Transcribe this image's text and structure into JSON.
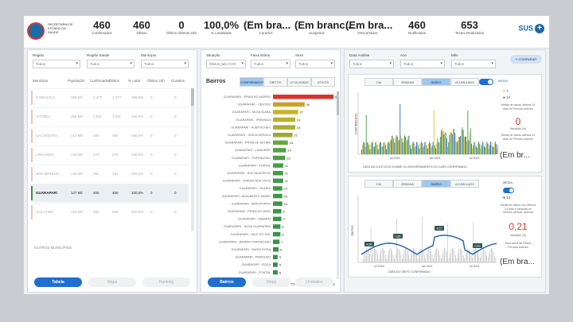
{
  "header": {
    "logo_text": "SECRETARIA DE ESTADO DA SAÚDE",
    "kpis": [
      {
        "value": "460",
        "label": "Confirmados"
      },
      {
        "value": "460",
        "label": "Óbitos"
      },
      {
        "value": "0",
        "label": "Óbitos Últimas 24h"
      },
      {
        "value": "100,0%",
        "label": "% Letalidade"
      },
      {
        "value": "(Em bra...",
        "label": "Curados"
      },
      {
        "value": "(Em branc...",
        "label": "Suspeitos"
      },
      {
        "value": "(Em bra...",
        "label": "Descartados"
      },
      {
        "value": "460",
        "label": "Notificados"
      },
      {
        "value": "653",
        "label": "Testes Realizados"
      }
    ],
    "brand": "SUS"
  },
  "left_panel": {
    "filters": [
      {
        "label": "Região",
        "value": "Todos"
      },
      {
        "label": "Região Saúde",
        "value": "Todos"
      },
      {
        "label": "Município",
        "value": "Todos"
      }
    ],
    "columns": [
      "Município",
      "População",
      "Confirmados",
      "Óbitos",
      "% Letal.",
      "Óbitos 24h",
      "Curados"
    ],
    "rows": [
      {
        "muni": "CARIACICA",
        "pop": "386 Mil",
        "c": "1.477",
        "o": "1.477",
        "l": "100,0%",
        "o24": "0",
        "cur": "0",
        "sel": false
      },
      {
        "muni": "VITÓRIA",
        "pop": "365 Mil",
        "c": "1.511",
        "o": "1.511",
        "l": "100,0%",
        "o24": "0",
        "cur": "0",
        "sel": false
      },
      {
        "muni": "CACHOEIRO",
        "pop": "212 Mil",
        "c": "400",
        "o": "400",
        "l": "100,0%",
        "o24": "0",
        "cur": "0",
        "sel": false
      },
      {
        "muni": "LINHARES",
        "pop": "176 Mil",
        "c": "470",
        "o": "470",
        "l": "100,0%",
        "o24": "0",
        "cur": "0",
        "sel": false
      },
      {
        "muni": "SÃO MATEUS",
        "pop": "132 Mil",
        "c": "281",
        "o": "281",
        "l": "100,0%",
        "o24": "0",
        "cur": "0",
        "sel": false
      },
      {
        "muni": "GUARAPARI",
        "pop": "127 Mil",
        "c": "460",
        "o": "460",
        "l": "100,0%",
        "o24": "0",
        "cur": "0",
        "sel": true
      },
      {
        "muni": "COLATINA",
        "pop": "123 Mil",
        "c": "395",
        "o": "395",
        "l": "100,0%",
        "o24": "0",
        "cur": "0",
        "sel": false
      }
    ],
    "more_label": "OUTROS MUNICÍPIOS",
    "buttons": [
      "Tabela",
      "Mapa",
      "Ranking"
    ]
  },
  "mid_panel": {
    "filters": [
      {
        "label": "Situação",
        "value": "Óbitos pelo COV"
      },
      {
        "label": "Faixa Etária",
        "value": "Todos"
      },
      {
        "label": "Sexo",
        "value": "Todos"
      }
    ],
    "title": "Bairros",
    "tabs": [
      "CONFIRMADOS",
      "ÓBITOS",
      "LETALIDADE",
      "ATIVOS"
    ],
    "bars": [
      {
        "label": "GUARAPARI - PRAIA DO MORRO",
        "value": 65,
        "color": "#d9342b"
      },
      {
        "label": "GUARAPARI - CENTRO",
        "value": 34,
        "color": "#c9a227"
      },
      {
        "label": "GUARAPARI - MUQUIÇABA",
        "value": 27,
        "color": "#c9b227"
      },
      {
        "label": "GUARAPARI - IPIRANGA",
        "value": 24,
        "color": "#b8b030"
      },
      {
        "label": "GUARAPARI - KUBITSCHEK",
        "value": 24,
        "color": "#a9ad33"
      },
      {
        "label": "GUARAPARI - SANTA MÔNICA",
        "value": 21,
        "color": "#9aa936"
      },
      {
        "label": "GUARAPARI - PRAIA DE SETIBA",
        "value": 16,
        "color": "#64a83e"
      },
      {
        "label": "GUARAPARI - LAMEIRÃO",
        "value": 14,
        "color": "#52a440"
      },
      {
        "label": "GUARAPARI - ITAPEBUSSU",
        "value": 13,
        "color": "#4aa042"
      },
      {
        "label": "GUARAPARI - PORTAL",
        "value": 11,
        "color": "#469e43"
      },
      {
        "label": "GUARAPARI - SOL NASCENTE",
        "value": 11,
        "color": "#429c44"
      },
      {
        "label": "GUARAPARI - JARDIM BOA VISTA",
        "value": 11,
        "color": "#3f9a45"
      },
      {
        "label": "GUARAPARI - OLARIA",
        "value": 10,
        "color": "#3d9946"
      },
      {
        "label": "GUARAPARI - ADALBERTO SIMÃO",
        "value": 10,
        "color": "#3b9846"
      },
      {
        "label": "GUARAPARI - AEROPORTO",
        "value": 10,
        "color": "#3a9747"
      },
      {
        "label": "GUARAPARI - PRAIA DO MEIO",
        "value": 9,
        "color": "#399647"
      },
      {
        "label": "GUARAPARI - JABARAÍ",
        "value": 9,
        "color": "#389547"
      },
      {
        "label": "GUARAPARI - NOVA GUARAPARI",
        "value": 8,
        "color": "#379447"
      },
      {
        "label": "GUARAPARI - VALE DO SOL",
        "value": 8,
        "color": "#369347"
      },
      {
        "label": "GUARAPARI - BAIRRO ITAPEBUSSU",
        "value": 7,
        "color": "#359247"
      },
      {
        "label": "GUARAPARI - SANTA ROSA",
        "value": 6,
        "color": "#349147"
      },
      {
        "label": "GUARAPARI - PAPAGAIO",
        "value": 5,
        "color": "#339047"
      },
      {
        "label": "GUARAPARI - ROÇA",
        "value": 5,
        "color": "#328f47"
      },
      {
        "label": "GUARAPARI - PONTAL",
        "value": 5,
        "color": "#318e47"
      }
    ],
    "xlabel": "TOTAL DE CONFIRMADOS",
    "buttons": [
      "Bairros",
      "Mapa",
      "Unidades"
    ]
  },
  "right_panel": {
    "filters": [
      {
        "label": "Data Análise",
        "value": "Todos"
      },
      {
        "label": "Ano",
        "value": "Todos"
      },
      {
        "label": "Mês",
        "value": "Todos"
      }
    ],
    "add_button": "COMPARAR",
    "chart1": {
      "tabs": [
        "DIA",
        "SEMANA",
        "DIÁRIO",
        "ACUMULADO"
      ],
      "toggle_label": "MÉDIA",
      "radios": [
        "7",
        "14"
      ],
      "note_top": "Média de casos últimos 14 dias vs Período anterior",
      "value": "0",
      "value_label": "Variação (%)",
      "note_bottom": "Média de casos últimos 14 dias vs Período anterior",
      "big_text": "(Em br...",
      "xlabel": "DATA DA COLETA DO EXAME OU ENCERRAMENTO DO CASO CONFIRMADO",
      "ylabel": "CONFIRMADOS",
      "x_ticks": [
        "jul 2020",
        "jan 2021",
        "jul 2021"
      ]
    },
    "chart2": {
      "tabs": [
        "DIA",
        "SEMANA",
        "DIÁRIO",
        "ACUMULADO"
      ],
      "toggle_label": "MÉDIA",
      "radio_label": "14",
      "note_top": "Média de óbitos nos últimos 14 dias e variação no mesmo período anterior",
      "value": "0,21",
      "value_label": "Variação (%)",
      "note_bottom": "Taxa atual de Óbitos Período anterior",
      "big_text": "(Em bra...",
      "xlabel": "DATA DO ÓBITO CONFIRMADO",
      "ylabel": "ÓBITOS",
      "x_ticks": [
        "jul 2020",
        "jan 2021",
        "jul 2021"
      ],
      "markers": [
        "4,64",
        "0,86",
        "4,57",
        "0,43"
      ]
    }
  }
}
